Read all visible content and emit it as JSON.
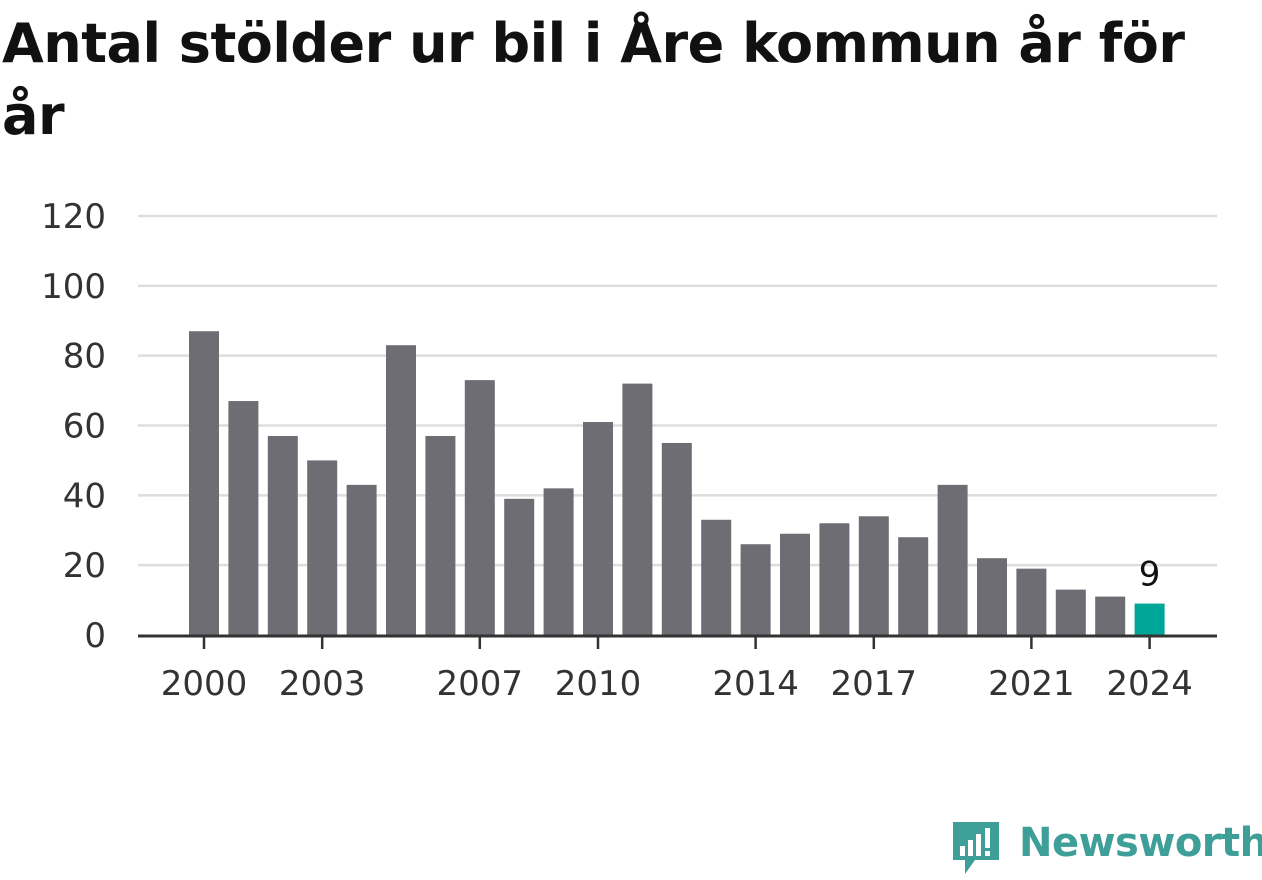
{
  "title": "Antal stölder ur bil i Åre kommun år för år",
  "colors": {
    "bar": "#6e6d73",
    "highlight": "#00a697",
    "grid": "#dddddd",
    "axis": "#333333",
    "brand": "#3e9e98"
  },
  "chart_data": {
    "type": "bar",
    "title": "Antal stölder ur bil i Åre kommun år för år",
    "xlabel": "",
    "ylabel": "",
    "categories": [
      "2000",
      "2001",
      "2002",
      "2003",
      "2004",
      "2005",
      "2006",
      "2007",
      "2008",
      "2009",
      "2010",
      "2011",
      "2012",
      "2013",
      "2014",
      "2015",
      "2016",
      "2017",
      "2018",
      "2019",
      "2020",
      "2021",
      "2022",
      "2023",
      "2024"
    ],
    "values": [
      87,
      67,
      57,
      50,
      43,
      83,
      57,
      73,
      39,
      42,
      61,
      72,
      55,
      33,
      26,
      29,
      32,
      34,
      28,
      43,
      22,
      19,
      13,
      11,
      9
    ],
    "ylim": [
      0,
      120
    ],
    "yticks": [
      0,
      20,
      40,
      60,
      80,
      100,
      120
    ],
    "xtick_labels": [
      "2000",
      "2003",
      "2007",
      "2010",
      "2014",
      "2017",
      "2021",
      "2024"
    ],
    "highlight": {
      "category": "2024",
      "label": "9"
    },
    "grid": true
  },
  "logo": {
    "text": "Newsworthy",
    "icon": "newsworthy-logo-icon"
  }
}
